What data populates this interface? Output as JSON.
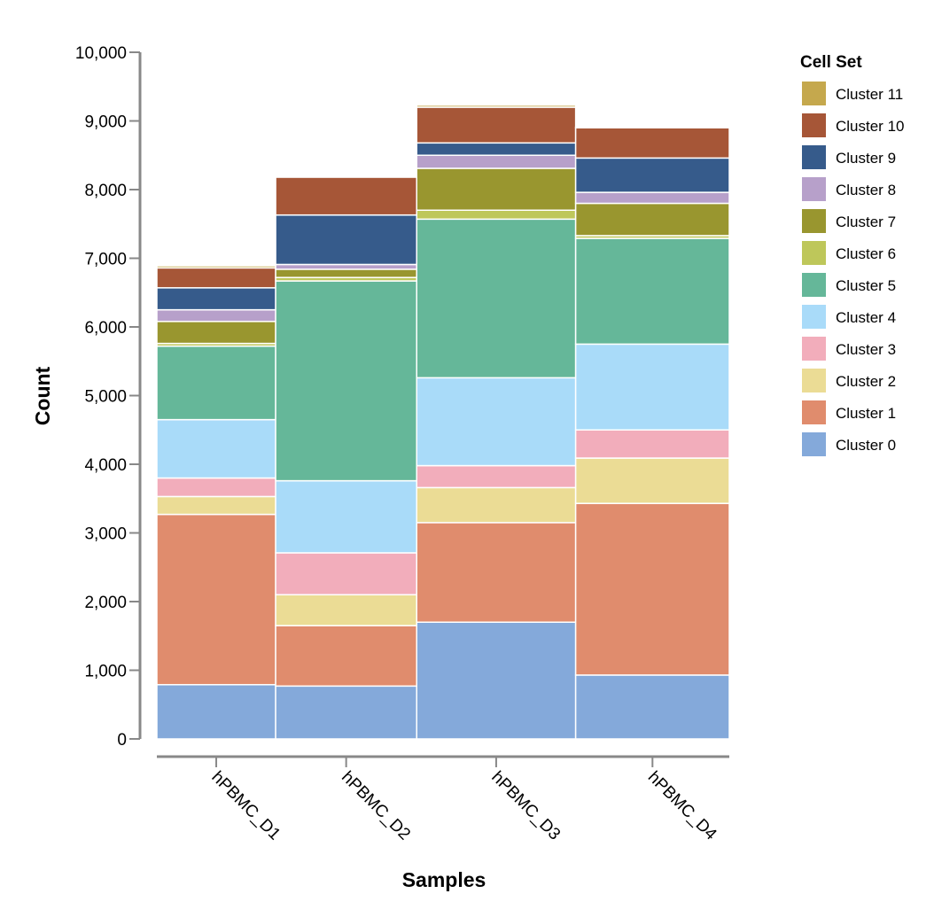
{
  "chart_data": {
    "type": "bar",
    "stacked": true,
    "xlabel": "Samples",
    "ylabel": "Count",
    "ylim": [
      0,
      10000
    ],
    "yticks": [
      0,
      1000,
      2000,
      3000,
      4000,
      5000,
      6000,
      7000,
      8000,
      9000,
      10000
    ],
    "ytick_labels": [
      "0",
      "1,000",
      "2,000",
      "3,000",
      "4,000",
      "5,000",
      "6,000",
      "7,000",
      "8,000",
      "9,000",
      "10,000"
    ],
    "grid": false,
    "legend": {
      "title": "Cell Set",
      "position": "right"
    },
    "categories": [
      "hPBMC_D1",
      "hPBMC_D2",
      "hPBMC_D3",
      "hPBMC_D4"
    ],
    "category_weights": [
      6890,
      8180,
      9220,
      8910
    ],
    "series": [
      {
        "name": "Cluster 0",
        "color": "#84a9da",
        "values": [
          790,
          770,
          1700,
          930
        ]
      },
      {
        "name": "Cluster 1",
        "color": "#e08c6d",
        "values": [
          2480,
          880,
          1450,
          2500
        ]
      },
      {
        "name": "Cluster 2",
        "color": "#ebdc95",
        "values": [
          260,
          450,
          510,
          660
        ]
      },
      {
        "name": "Cluster 3",
        "color": "#f2adbb",
        "values": [
          270,
          610,
          320,
          410
        ]
      },
      {
        "name": "Cluster 4",
        "color": "#a9dbf9",
        "values": [
          850,
          1050,
          1280,
          1250
        ]
      },
      {
        "name": "Cluster 5",
        "color": "#65b799",
        "values": [
          1070,
          2910,
          2310,
          1540
        ]
      },
      {
        "name": "Cluster 6",
        "color": "#bec75a",
        "values": [
          40,
          50,
          130,
          40
        ]
      },
      {
        "name": "Cluster 7",
        "color": "#99962f",
        "values": [
          320,
          120,
          610,
          470
        ]
      },
      {
        "name": "Cluster 8",
        "color": "#b7a0ca",
        "values": [
          170,
          70,
          190,
          160
        ]
      },
      {
        "name": "Cluster 9",
        "color": "#365b8b",
        "values": [
          320,
          720,
          180,
          500
        ]
      },
      {
        "name": "Cluster 10",
        "color": "#a65637",
        "values": [
          290,
          550,
          520,
          440
        ]
      },
      {
        "name": "Cluster 11",
        "color": "#c5a84d",
        "values": [
          30,
          0,
          30,
          10
        ]
      }
    ]
  }
}
